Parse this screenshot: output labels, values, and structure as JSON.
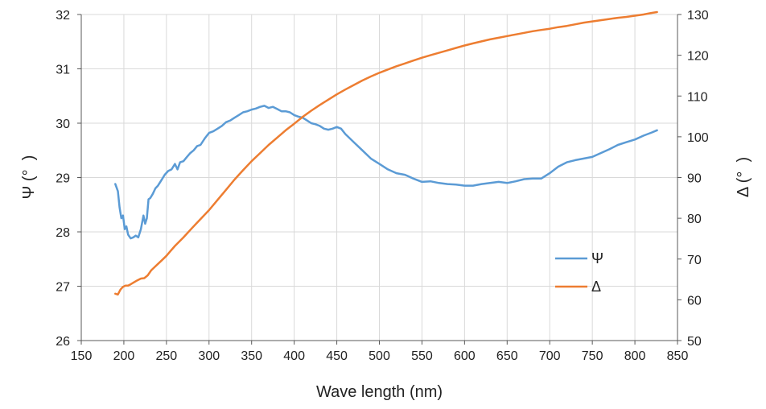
{
  "chart_data": {
    "type": "line",
    "title": "",
    "xlabel": "Wave length (nm)",
    "ylabel_left": "Ψ (°  )",
    "ylabel_right": "Δ (°  )",
    "xlim": [
      150,
      850
    ],
    "ylim_left": [
      26,
      32
    ],
    "ylim_right": [
      50,
      130
    ],
    "x_ticks": [
      150,
      200,
      250,
      300,
      350,
      400,
      450,
      500,
      550,
      600,
      650,
      700,
      750,
      800,
      850
    ],
    "y_left_ticks": [
      26,
      27,
      28,
      29,
      30,
      31,
      32
    ],
    "y_right_ticks": [
      50,
      60,
      70,
      80,
      90,
      100,
      110,
      120,
      130
    ],
    "grid": true,
    "legend_position": "bottom-right",
    "series": [
      {
        "name": "Ψ",
        "axis": "left",
        "color": "#5b9bd5",
        "x": [
          190,
          193,
          195,
          197,
          199,
          201,
          203,
          205,
          208,
          211,
          214,
          217,
          220,
          223,
          225,
          227,
          229,
          231,
          234,
          237,
          240,
          244,
          248,
          252,
          256,
          260,
          263,
          266,
          270,
          274,
          278,
          282,
          286,
          290,
          295,
          300,
          305,
          310,
          315,
          320,
          325,
          330,
          335,
          340,
          345,
          350,
          355,
          360,
          365,
          370,
          375,
          380,
          385,
          390,
          395,
          400,
          405,
          410,
          415,
          420,
          425,
          430,
          435,
          440,
          445,
          450,
          455,
          460,
          470,
          480,
          490,
          500,
          510,
          520,
          530,
          540,
          550,
          560,
          570,
          580,
          590,
          600,
          610,
          620,
          630,
          640,
          650,
          660,
          670,
          680,
          690,
          700,
          710,
          720,
          730,
          740,
          750,
          760,
          770,
          780,
          790,
          800,
          810,
          820,
          826
        ],
        "values": [
          28.88,
          28.75,
          28.45,
          28.25,
          28.3,
          28.05,
          28.1,
          27.95,
          27.88,
          27.9,
          27.93,
          27.9,
          28.05,
          28.3,
          28.15,
          28.25,
          28.6,
          28.62,
          28.7,
          28.8,
          28.85,
          28.95,
          29.05,
          29.12,
          29.15,
          29.25,
          29.15,
          29.28,
          29.3,
          29.38,
          29.45,
          29.5,
          29.58,
          29.6,
          29.72,
          29.82,
          29.85,
          29.9,
          29.95,
          30.02,
          30.05,
          30.1,
          30.15,
          30.2,
          30.22,
          30.25,
          30.27,
          30.3,
          30.32,
          30.28,
          30.3,
          30.26,
          30.22,
          30.22,
          30.2,
          30.15,
          30.12,
          30.1,
          30.05,
          30.0,
          29.98,
          29.95,
          29.9,
          29.88,
          29.9,
          29.93,
          29.9,
          29.8,
          29.65,
          29.5,
          29.35,
          29.25,
          29.15,
          29.08,
          29.05,
          28.98,
          28.92,
          28.93,
          28.9,
          28.88,
          28.87,
          28.85,
          28.85,
          28.88,
          28.9,
          28.92,
          28.9,
          28.93,
          28.97,
          28.98,
          28.98,
          29.08,
          29.2,
          29.28,
          29.32,
          29.35,
          29.38,
          29.45,
          29.52,
          29.6,
          29.65,
          29.7,
          29.77,
          29.83,
          29.87
        ]
      },
      {
        "name": "Δ",
        "axis": "right",
        "color": "#ed7d31",
        "x": [
          190,
          193,
          196,
          199,
          202,
          205,
          208,
          212,
          216,
          220,
          224,
          228,
          232,
          236,
          240,
          245,
          250,
          255,
          260,
          270,
          280,
          290,
          300,
          310,
          320,
          330,
          340,
          350,
          360,
          370,
          380,
          390,
          400,
          410,
          420,
          430,
          440,
          450,
          460,
          470,
          480,
          490,
          500,
          510,
          520,
          530,
          540,
          550,
          560,
          570,
          580,
          590,
          600,
          610,
          620,
          630,
          640,
          650,
          660,
          670,
          680,
          690,
          700,
          710,
          720,
          730,
          740,
          750,
          760,
          770,
          780,
          790,
          800,
          810,
          820,
          826
        ],
        "values": [
          61.5,
          61.3,
          62.5,
          63.2,
          63.5,
          63.5,
          63.8,
          64.3,
          64.8,
          65.2,
          65.3,
          66.0,
          67.2,
          68.0,
          68.8,
          69.8,
          70.8,
          72.0,
          73.2,
          75.3,
          77.6,
          79.8,
          82.0,
          84.5,
          87.0,
          89.5,
          91.8,
          94.0,
          96.0,
          98.0,
          99.8,
          101.6,
          103.2,
          104.9,
          106.4,
          107.8,
          109.1,
          110.4,
          111.6,
          112.7,
          113.8,
          114.8,
          115.7,
          116.5,
          117.3,
          118.0,
          118.7,
          119.4,
          120.0,
          120.6,
          121.2,
          121.8,
          122.4,
          122.9,
          123.4,
          123.9,
          124.3,
          124.7,
          125.1,
          125.5,
          125.9,
          126.2,
          126.5,
          126.9,
          127.2,
          127.6,
          128.0,
          128.3,
          128.6,
          128.9,
          129.2,
          129.4,
          129.7,
          130.0,
          130.4,
          130.6
        ]
      }
    ]
  }
}
